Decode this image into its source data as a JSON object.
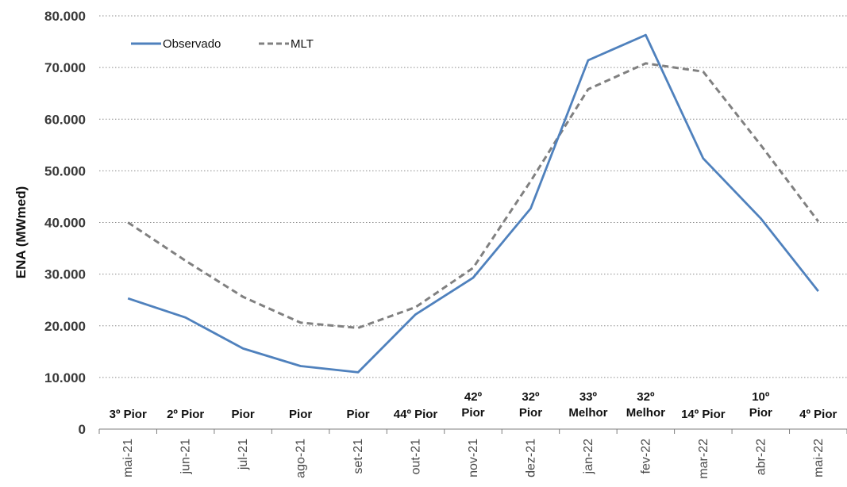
{
  "chart_data": {
    "type": "line",
    "ylabel": "ENA (MWmed)",
    "ylim": [
      0,
      80000
    ],
    "yticks": [
      "0",
      "10.000",
      "20.000",
      "30.000",
      "40.000",
      "50.000",
      "60.000",
      "70.000",
      "80.000"
    ],
    "categories": [
      "mai-21",
      "jun-21",
      "jul-21",
      "ago-21",
      "set-21",
      "out-21",
      "nov-21",
      "dez-21",
      "jan-22",
      "fev-22",
      "mar-22",
      "abr-22",
      "mai-22"
    ],
    "rankings": [
      "3º Pior",
      "2º Pior",
      "Pior",
      "Pior",
      "Pior",
      "44º Pior",
      "42º\nPior",
      "32º\nPior",
      "33º\nMelhor",
      "32º\nMelhor",
      "14º Pior",
      "10º\nPior",
      "4º Pior"
    ],
    "grid": true,
    "legend_position": "top-left",
    "series": [
      {
        "name": "Observado",
        "color": "#4f81bd",
        "style": "solid",
        "values": [
          25300,
          21600,
          15600,
          12200,
          11000,
          22200,
          29300,
          42700,
          71400,
          76300,
          52400,
          40800,
          26700
        ]
      },
      {
        "name": "MLT",
        "color": "#808080",
        "style": "dashed",
        "values": [
          40000,
          32600,
          25600,
          20600,
          19600,
          23600,
          31200,
          48000,
          65800,
          70800,
          69200,
          55000,
          40200
        ]
      }
    ]
  }
}
